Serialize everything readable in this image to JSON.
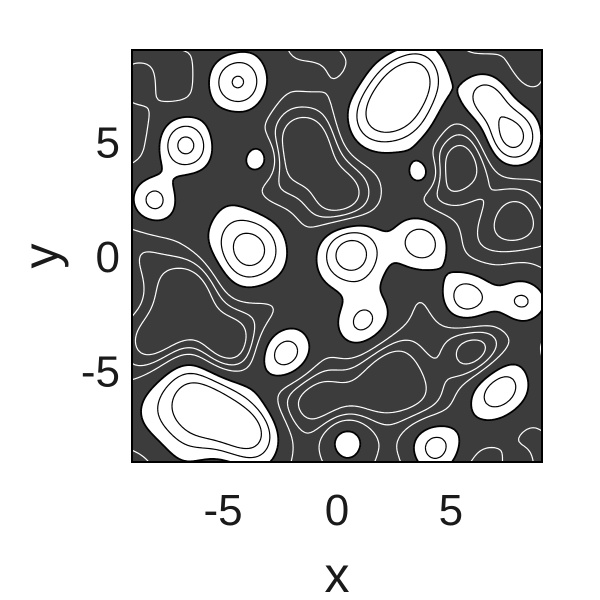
{
  "chart_data": {
    "type": "heatmap",
    "subtype": "filled-contour",
    "title": "",
    "xlabel": "x",
    "ylabel": "y",
    "xlim": [
      -9,
      9
    ],
    "ylim": [
      -9,
      9
    ],
    "xticks": [
      -5,
      0,
      5
    ],
    "yticks": [
      -5,
      0,
      5
    ],
    "grid": false,
    "legend": "none",
    "colors": {
      "background_fill": "#3c3c3c",
      "high_fill": "#ffffff",
      "low_contour_lines": "#ffffff",
      "high_contour_lines": "#000000",
      "frame": "#000000"
    },
    "blobs": [
      {
        "x": -4.2,
        "y": 0.2,
        "amp": 1.5,
        "s": 1.3
      },
      {
        "x": 0.6,
        "y": 0.1,
        "amp": 1.4,
        "s": 1.1
      },
      {
        "x": 3.6,
        "y": 0.6,
        "amp": 1.0,
        "s": 0.9
      },
      {
        "x": 2.2,
        "y": 6.2,
        "amp": 1.6,
        "s": 1.2
      },
      {
        "x": 3.5,
        "y": 7.8,
        "amp": 1.3,
        "s": 1.0
      },
      {
        "x": -4.2,
        "y": 7.6,
        "amp": 1.2,
        "s": 1.0
      },
      {
        "x": -6.6,
        "y": 4.8,
        "amp": 1.2,
        "s": 0.9
      },
      {
        "x": -7.9,
        "y": 2.4,
        "amp": 0.9,
        "s": 0.8
      },
      {
        "x": 7.6,
        "y": 5.2,
        "amp": 1.3,
        "s": 1.0
      },
      {
        "x": 6.6,
        "y": 6.9,
        "amp": 0.9,
        "s": 0.8
      },
      {
        "x": -6.2,
        "y": -6.6,
        "amp": 1.7,
        "s": 1.4
      },
      {
        "x": -3.8,
        "y": -7.7,
        "amp": 1.3,
        "s": 1.0
      },
      {
        "x": -2.1,
        "y": -4.3,
        "amp": 1.1,
        "s": 0.9
      },
      {
        "x": 1.1,
        "y": -2.9,
        "amp": 1.0,
        "s": 0.9
      },
      {
        "x": 5.6,
        "y": -1.8,
        "amp": 1.0,
        "s": 0.9
      },
      {
        "x": 8.1,
        "y": -2.0,
        "amp": 1.0,
        "s": 0.8
      },
      {
        "x": 7.1,
        "y": -5.8,
        "amp": 1.2,
        "s": 1.0
      },
      {
        "x": 4.3,
        "y": -8.2,
        "amp": 1.0,
        "s": 0.9
      },
      {
        "x": 0.4,
        "y": -7.9,
        "amp": 0.9,
        "s": 0.8
      },
      {
        "x": 3.8,
        "y": 3.6,
        "amp": 0.8,
        "s": 0.6
      },
      {
        "x": -3.4,
        "y": 4.2,
        "amp": 0.8,
        "s": 0.7
      },
      {
        "x": -6.3,
        "y": -1.4,
        "amp": -0.9,
        "s": 1.3
      },
      {
        "x": -1.5,
        "y": 4.6,
        "amp": -0.9,
        "s": 1.2
      },
      {
        "x": 5.4,
        "y": 3.9,
        "amp": -0.8,
        "s": 1.1
      },
      {
        "x": 2.4,
        "y": -5.7,
        "amp": -0.9,
        "s": 1.3
      },
      {
        "x": -1.0,
        "y": -6.5,
        "amp": -0.8,
        "s": 1.1
      },
      {
        "x": 6.1,
        "y": -4.3,
        "amp": -0.7,
        "s": 1.0
      },
      {
        "x": -4.8,
        "y": -3.8,
        "amp": -0.8,
        "s": 1.0
      },
      {
        "x": 0.0,
        "y": 2.4,
        "amp": -0.7,
        "s": 1.0
      },
      {
        "x": -7.8,
        "y": -3.6,
        "amp": -0.7,
        "s": 1.0
      },
      {
        "x": 7.8,
        "y": 1.3,
        "amp": -0.7,
        "s": 0.9
      }
    ],
    "fill_threshold": 0.5,
    "low_levels": [
      0.05,
      -0.2,
      -0.45
    ],
    "high_levels": [
      0.5,
      0.85,
      1.2
    ]
  }
}
